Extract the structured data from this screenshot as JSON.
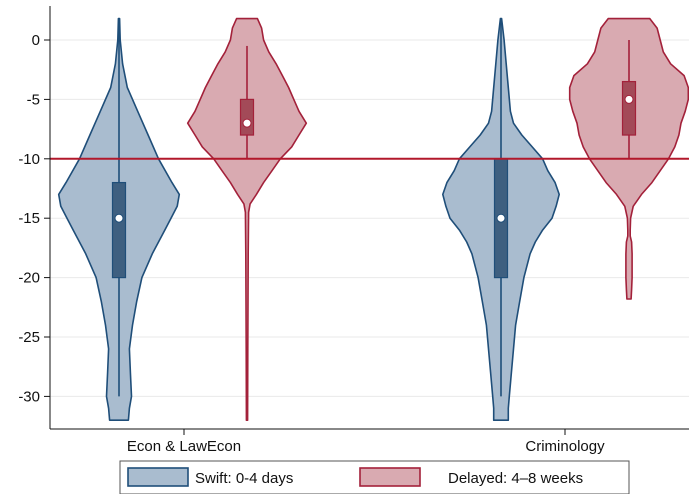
{
  "chart_data": {
    "type": "violin",
    "categories": [
      "Econ & LawEcon",
      "Criminology"
    ],
    "ylim": [
      -32,
      2
    ],
    "yticks": [
      0,
      -5,
      -10,
      -15,
      -20,
      -25,
      -30
    ],
    "grid": true,
    "reference_line": {
      "y": -10,
      "color": "#b2182b"
    },
    "legend": {
      "placement": "bottom"
    },
    "series": [
      {
        "name": "Swift:  0-4 days",
        "fill": "#a9bccf",
        "stroke": "#1f4e79",
        "box_fill": "#3e5f80",
        "violins": [
          {
            "category": "Econ & LawEcon",
            "min": -32,
            "max": 1.8,
            "box": {
              "q1": -20,
              "median": -15,
              "q3": -12,
              "whisker_low": -30,
              "whisker_high": 1.8
            },
            "profile": [
              [
                1.8,
                0.6
              ],
              [
                0,
                1.2
              ],
              [
                -2,
                3.5
              ],
              [
                -4,
                8
              ],
              [
                -6,
                18
              ],
              [
                -8,
                28
              ],
              [
                -10,
                38
              ],
              [
                -12,
                51
              ],
              [
                -13,
                58
              ],
              [
                -14,
                56
              ],
              [
                -15,
                50
              ],
              [
                -16,
                44
              ],
              [
                -18,
                32
              ],
              [
                -20,
                22
              ],
              [
                -22,
                17
              ],
              [
                -24,
                13
              ],
              [
                -26,
                10
              ],
              [
                -28,
                11
              ],
              [
                -30,
                12
              ],
              [
                -31,
                10
              ],
              [
                -32,
                9
              ]
            ]
          },
          {
            "category": "Criminology",
            "min": -32,
            "max": 1.8,
            "box": {
              "q1": -20,
              "median": -15,
              "q3": -10,
              "whisker_low": -30,
              "whisker_high": 1.8
            },
            "profile": [
              [
                1.8,
                0.6
              ],
              [
                0,
                3
              ],
              [
                -2,
                5
              ],
              [
                -4,
                7
              ],
              [
                -6,
                9
              ],
              [
                -7,
                12
              ],
              [
                -8,
                20
              ],
              [
                -9,
                30
              ],
              [
                -10,
                40
              ],
              [
                -11,
                45
              ],
              [
                -12,
                52
              ],
              [
                -13,
                56
              ],
              [
                -14,
                53
              ],
              [
                -15,
                49
              ],
              [
                -16,
                40
              ],
              [
                -17,
                33
              ],
              [
                -18,
                28
              ],
              [
                -20,
                22
              ],
              [
                -22,
                18
              ],
              [
                -24,
                14
              ],
              [
                -26,
                12
              ],
              [
                -28,
                10
              ],
              [
                -30,
                8
              ],
              [
                -31,
                7
              ],
              [
                -32,
                7
              ]
            ]
          }
        ]
      },
      {
        "name": "Delayed: 4–8 weeks",
        "fill": "#d9aab1",
        "stroke": "#a3213a",
        "box_fill": "#a34a58",
        "violins": [
          {
            "category": "Econ & LawEcon",
            "min": -32,
            "max": 1.8,
            "box": {
              "q1": -8,
              "median": -7,
              "q3": -5,
              "whisker_low": -10,
              "whisker_high": -0.5
            },
            "profile": [
              [
                1.8,
                10
              ],
              [
                1,
                14
              ],
              [
                0,
                16
              ],
              [
                -1,
                21
              ],
              [
                -2,
                28
              ],
              [
                -3,
                34
              ],
              [
                -4,
                40
              ],
              [
                -5,
                45
              ],
              [
                -6,
                50
              ],
              [
                -7,
                57
              ],
              [
                -8,
                50
              ],
              [
                -9,
                43
              ],
              [
                -10,
                32
              ],
              [
                -11,
                24
              ],
              [
                -12,
                16
              ],
              [
                -13,
                9
              ],
              [
                -13.8,
                3
              ],
              [
                -14.5,
                1.5
              ],
              [
                -18,
                1.2
              ],
              [
                -22,
                1
              ],
              [
                -26,
                0.8
              ],
              [
                -32,
                0.6
              ]
            ]
          },
          {
            "category": "Criminology",
            "min": -21.8,
            "max": 1.8,
            "box": {
              "q1": -8,
              "median": -5,
              "q3": -3.5,
              "whisker_low": -10,
              "whisker_high": 0
            },
            "profile": [
              [
                1.8,
                20
              ],
              [
                1,
                27
              ],
              [
                0,
                30
              ],
              [
                -1,
                33
              ],
              [
                -2,
                40
              ],
              [
                -3,
                53
              ],
              [
                -4,
                57
              ],
              [
                -5,
                57
              ],
              [
                -6,
                54
              ],
              [
                -7,
                50
              ],
              [
                -8,
                48
              ],
              [
                -9,
                44
              ],
              [
                -10,
                38
              ],
              [
                -11,
                30
              ],
              [
                -12,
                22
              ],
              [
                -13,
                12
              ],
              [
                -14,
                4
              ],
              [
                -15,
                1.5
              ],
              [
                -16,
                1.2
              ],
              [
                -16.5,
                1.2
              ],
              [
                -17,
                2.5
              ],
              [
                -18,
                3
              ],
              [
                -20,
                3
              ],
              [
                -21,
                2.5
              ],
              [
                -21.8,
                2
              ]
            ]
          }
        ]
      }
    ]
  }
}
